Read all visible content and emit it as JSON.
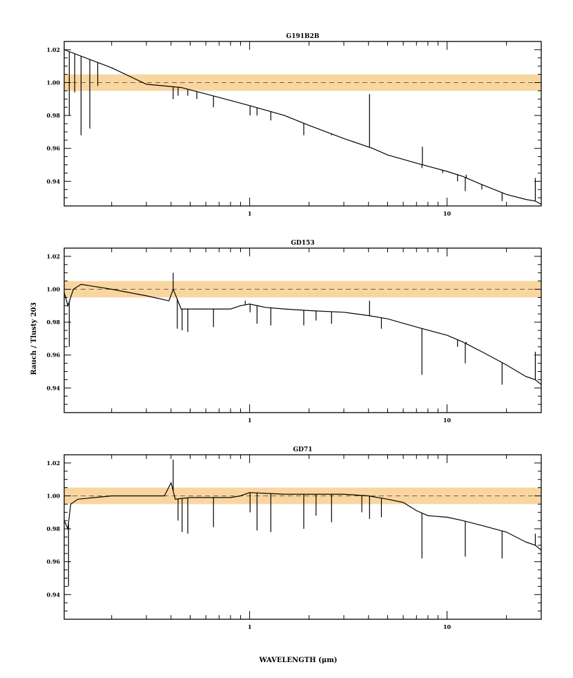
{
  "figure": {
    "ylabel": "Rauch / Tlusty 203",
    "xlabel": "WAVELENGTH (μm)"
  },
  "style": {
    "band_color": "#f9d6a0",
    "line_color": "#000000",
    "reference_line_color": "#7a6040"
  },
  "chart_data": [
    {
      "type": "line",
      "title": "G191B2B",
      "xscale": "log",
      "xlim": [
        0.115,
        30
      ],
      "ylim": [
        0.925,
        1.025
      ],
      "x_ticklabels": [
        "1",
        "10"
      ],
      "y_ticks": [
        0.94,
        0.96,
        0.98,
        1.0,
        1.02
      ],
      "y_ticklabels": [
        "0.94",
        "0.96",
        "0.98",
        "1.00",
        "1.02"
      ],
      "reference_line": 1.0,
      "band": [
        0.995,
        1.005
      ],
      "continuum": [
        [
          0.115,
          1.02
        ],
        [
          0.2,
          1.009
        ],
        [
          0.3,
          0.999
        ],
        [
          0.45,
          0.997
        ],
        [
          0.7,
          0.991
        ],
        [
          1.0,
          0.986
        ],
        [
          1.5,
          0.98
        ],
        [
          2.0,
          0.974
        ],
        [
          3.0,
          0.966
        ],
        [
          4.2,
          0.96
        ],
        [
          5.0,
          0.956
        ],
        [
          7.0,
          0.951
        ],
        [
          10.0,
          0.946
        ],
        [
          12.0,
          0.943
        ],
        [
          15.0,
          0.938
        ],
        [
          20.0,
          0.932
        ],
        [
          25.0,
          0.929
        ],
        [
          28.0,
          0.928
        ],
        [
          30.0,
          0.926
        ]
      ],
      "features": [
        {
          "x": 0.122,
          "y": 0.98
        },
        {
          "x": 0.13,
          "y": 0.994
        },
        {
          "x": 0.14,
          "y": 0.968
        },
        {
          "x": 0.155,
          "y": 0.972
        },
        {
          "x": 0.17,
          "y": 0.998
        },
        {
          "x": 0.41,
          "y": 0.99
        },
        {
          "x": 0.434,
          "y": 0.992
        },
        {
          "x": 0.486,
          "y": 0.992
        },
        {
          "x": 0.54,
          "y": 0.99
        },
        {
          "x": 0.656,
          "y": 0.985
        },
        {
          "x": 1.005,
          "y": 0.98
        },
        {
          "x": 1.09,
          "y": 0.98
        },
        {
          "x": 1.28,
          "y": 0.977
        },
        {
          "x": 1.88,
          "y": 0.968
        },
        {
          "x": 2.6,
          "y": 0.968
        },
        {
          "x": 4.05,
          "y": 0.993
        },
        {
          "x": 7.46,
          "y": 0.948
        },
        {
          "x": 7.5,
          "y": 0.961
        },
        {
          "x": 9.5,
          "y": 0.945
        },
        {
          "x": 11.3,
          "y": 0.94
        },
        {
          "x": 12.37,
          "y": 0.934
        },
        {
          "x": 12.5,
          "y": 0.944
        },
        {
          "x": 15.0,
          "y": 0.935
        },
        {
          "x": 19.0,
          "y": 0.928
        },
        {
          "x": 28.0,
          "y": 0.942
        }
      ]
    },
    {
      "type": "line",
      "title": "GD153",
      "xscale": "log",
      "xlim": [
        0.115,
        30
      ],
      "ylim": [
        0.925,
        1.025
      ],
      "x_ticklabels": [
        "1",
        "10"
      ],
      "y_ticks": [
        0.94,
        0.96,
        0.98,
        1.0,
        1.02
      ],
      "y_ticklabels": [
        "0.94",
        "0.96",
        "0.98",
        "1.00",
        "1.02"
      ],
      "reference_line": 1.0,
      "band": [
        0.995,
        1.005
      ],
      "continuum": [
        [
          0.115,
          0.998
        ],
        [
          0.12,
          0.99
        ],
        [
          0.128,
          1.0
        ],
        [
          0.14,
          1.003
        ],
        [
          0.2,
          1.0
        ],
        [
          0.3,
          0.996
        ],
        [
          0.39,
          0.993
        ],
        [
          0.41,
          1.0
        ],
        [
          0.45,
          0.988
        ],
        [
          0.6,
          0.988
        ],
        [
          0.8,
          0.988
        ],
        [
          0.9,
          0.99
        ],
        [
          1.0,
          0.991
        ],
        [
          1.2,
          0.989
        ],
        [
          1.5,
          0.988
        ],
        [
          2.0,
          0.987
        ],
        [
          3.0,
          0.986
        ],
        [
          4.0,
          0.984
        ],
        [
          5.0,
          0.982
        ],
        [
          7.0,
          0.977
        ],
        [
          10.0,
          0.972
        ],
        [
          12.0,
          0.968
        ],
        [
          15.0,
          0.962
        ],
        [
          20.0,
          0.954
        ],
        [
          25.0,
          0.947
        ],
        [
          28.0,
          0.945
        ],
        [
          30.0,
          0.942
        ]
      ],
      "features": [
        {
          "x": 0.122,
          "y": 0.965
        },
        {
          "x": 0.41,
          "y": 1.01
        },
        {
          "x": 0.43,
          "y": 0.976
        },
        {
          "x": 0.455,
          "y": 0.975
        },
        {
          "x": 0.486,
          "y": 0.974
        },
        {
          "x": 0.656,
          "y": 0.977
        },
        {
          "x": 0.95,
          "y": 0.993
        },
        {
          "x": 1.005,
          "y": 0.986
        },
        {
          "x": 1.09,
          "y": 0.979
        },
        {
          "x": 1.28,
          "y": 0.978
        },
        {
          "x": 1.88,
          "y": 0.978
        },
        {
          "x": 2.17,
          "y": 0.981
        },
        {
          "x": 2.6,
          "y": 0.979
        },
        {
          "x": 4.05,
          "y": 0.993
        },
        {
          "x": 4.65,
          "y": 0.976
        },
        {
          "x": 7.46,
          "y": 0.948
        },
        {
          "x": 11.3,
          "y": 0.965
        },
        {
          "x": 12.37,
          "y": 0.955
        },
        {
          "x": 12.5,
          "y": 0.968
        },
        {
          "x": 19.0,
          "y": 0.942
        },
        {
          "x": 28.0,
          "y": 0.962
        }
      ]
    },
    {
      "type": "line",
      "title": "GD71",
      "xscale": "log",
      "xlim": [
        0.115,
        30
      ],
      "ylim": [
        0.925,
        1.025
      ],
      "x_ticklabels": [
        "1",
        "10"
      ],
      "y_ticks": [
        0.94,
        0.96,
        0.98,
        1.0,
        1.02
      ],
      "y_ticklabels": [
        "0.94",
        "0.96",
        "0.98",
        "1.00",
        "1.02"
      ],
      "reference_line": 1.0,
      "band": [
        0.995,
        1.005
      ],
      "continuum": [
        [
          0.115,
          0.985
        ],
        [
          0.12,
          0.98
        ],
        [
          0.124,
          0.995
        ],
        [
          0.135,
          0.998
        ],
        [
          0.2,
          1.0
        ],
        [
          0.3,
          1.0
        ],
        [
          0.37,
          1.0
        ],
        [
          0.4,
          1.008
        ],
        [
          0.42,
          0.998
        ],
        [
          0.5,
          0.999
        ],
        [
          0.8,
          0.999
        ],
        [
          0.9,
          1.0
        ],
        [
          1.0,
          1.002
        ],
        [
          1.5,
          1.001
        ],
        [
          2.0,
          1.001
        ],
        [
          3.0,
          1.001
        ],
        [
          4.0,
          1.0
        ],
        [
          5.0,
          0.998
        ],
        [
          6.0,
          0.996
        ],
        [
          7.0,
          0.991
        ],
        [
          8.0,
          0.988
        ],
        [
          10.0,
          0.987
        ],
        [
          12.0,
          0.985
        ],
        [
          15.0,
          0.982
        ],
        [
          20.0,
          0.978
        ],
        [
          25.0,
          0.972
        ],
        [
          28.0,
          0.97
        ],
        [
          30.0,
          0.967
        ]
      ],
      "features": [
        {
          "x": 0.121,
          "y": 0.945
        },
        {
          "x": 0.41,
          "y": 1.022
        },
        {
          "x": 0.434,
          "y": 0.985
        },
        {
          "x": 0.455,
          "y": 0.978
        },
        {
          "x": 0.486,
          "y": 0.977
        },
        {
          "x": 0.656,
          "y": 0.981
        },
        {
          "x": 1.005,
          "y": 0.99
        },
        {
          "x": 1.09,
          "y": 0.979
        },
        {
          "x": 1.28,
          "y": 0.978
        },
        {
          "x": 1.88,
          "y": 0.98
        },
        {
          "x": 2.17,
          "y": 0.988
        },
        {
          "x": 2.6,
          "y": 0.984
        },
        {
          "x": 3.7,
          "y": 0.99
        },
        {
          "x": 4.05,
          "y": 0.986
        },
        {
          "x": 4.65,
          "y": 0.987
        },
        {
          "x": 7.46,
          "y": 0.962
        },
        {
          "x": 12.37,
          "y": 0.963
        },
        {
          "x": 19.0,
          "y": 0.962
        },
        {
          "x": 28.0,
          "y": 0.977
        }
      ]
    }
  ]
}
